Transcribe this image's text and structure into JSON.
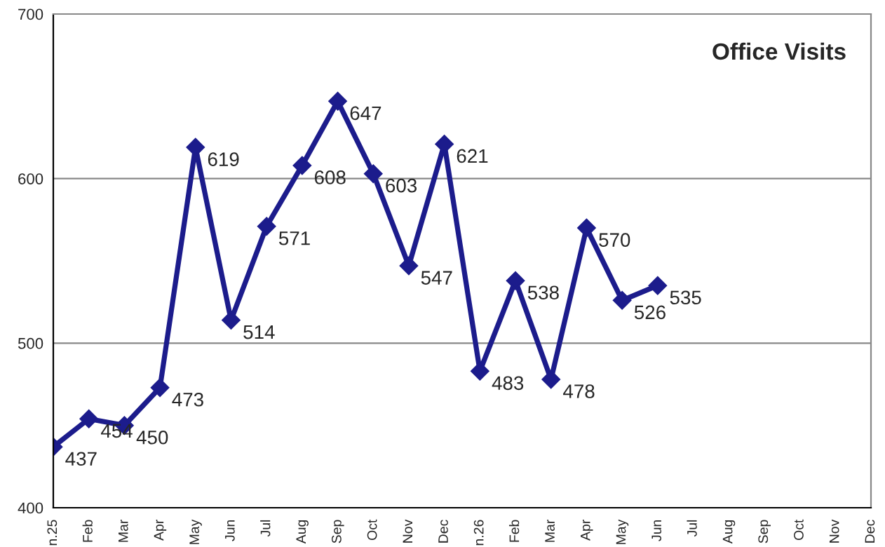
{
  "chart_data": {
    "type": "line",
    "title": "Office Visits",
    "categories": [
      "n.25",
      "Feb",
      "Mar",
      "Apr",
      "May",
      "Jun",
      "Jul",
      "Aug",
      "Sep",
      "Oct",
      "Nov",
      "Dec",
      "n.26",
      "Feb",
      "Mar",
      "Apr",
      "May",
      "Jun",
      "Jul",
      "Aug",
      "Sep",
      "Oct",
      "Nov",
      "Dec"
    ],
    "series": [
      {
        "color": "#1c1c8c",
        "values": [
          437,
          454,
          450,
          473,
          619,
          514,
          571,
          608,
          647,
          603,
          547,
          621,
          483,
          538,
          478,
          570,
          526,
          535,
          null,
          null,
          null,
          null,
          null,
          null
        ]
      }
    ],
    "ylim": [
      400,
      700
    ],
    "yticks": [
      400,
      500,
      600,
      700
    ],
    "grid": "y",
    "marker": "diamond",
    "line_style": "solid",
    "data_labels": true,
    "legend": false
  }
}
